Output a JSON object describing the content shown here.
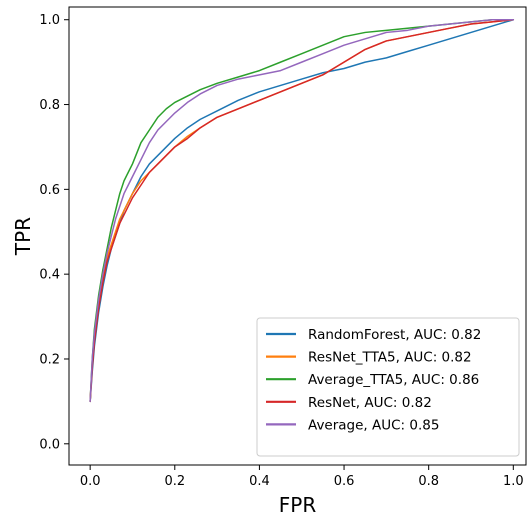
{
  "chart_data": {
    "type": "line",
    "title": "",
    "xlabel": "FPR",
    "ylabel": "TPR",
    "xlim": [
      -0.05,
      1.03
    ],
    "ylim": [
      -0.05,
      1.03
    ],
    "xticks": [
      0.0,
      0.2,
      0.4,
      0.6,
      0.8,
      1.0
    ],
    "yticks": [
      0.0,
      0.2,
      0.4,
      0.6,
      0.8,
      1.0
    ],
    "xtick_labels": [
      "0.0",
      "0.2",
      "0.4",
      "0.6",
      "0.8",
      "1.0"
    ],
    "ytick_labels": [
      "0.0",
      "0.2",
      "0.4",
      "0.6",
      "0.8",
      "1.0"
    ],
    "grid": false,
    "legend_position": "bottom-right",
    "series": [
      {
        "name": "RandomForest, AUC: 0.82",
        "color": "#1f77b4",
        "x": [
          0.0,
          0.005,
          0.01,
          0.02,
          0.03,
          0.04,
          0.05,
          0.06,
          0.07,
          0.08,
          0.09,
          0.1,
          0.12,
          0.14,
          0.16,
          0.18,
          0.2,
          0.23,
          0.26,
          0.3,
          0.35,
          0.4,
          0.45,
          0.5,
          0.55,
          0.6,
          0.65,
          0.7,
          0.75,
          0.8,
          0.85,
          0.9,
          0.95,
          1.0
        ],
        "y": [
          0.1,
          0.17,
          0.23,
          0.31,
          0.37,
          0.42,
          0.46,
          0.49,
          0.52,
          0.55,
          0.57,
          0.59,
          0.63,
          0.66,
          0.68,
          0.7,
          0.72,
          0.745,
          0.765,
          0.785,
          0.81,
          0.83,
          0.845,
          0.86,
          0.875,
          0.885,
          0.9,
          0.91,
          0.925,
          0.94,
          0.955,
          0.97,
          0.985,
          1.0
        ]
      },
      {
        "name": "ResNet_TTA5, AUC: 0.82",
        "color": "#ff7f0e",
        "x": [
          0.0,
          0.005,
          0.01,
          0.02,
          0.03,
          0.04,
          0.05,
          0.06,
          0.07,
          0.08,
          0.09,
          0.1,
          0.12,
          0.14,
          0.16,
          0.18,
          0.2,
          0.23,
          0.26,
          0.3,
          0.35,
          0.4,
          0.45,
          0.5,
          0.55,
          0.6,
          0.65,
          0.7,
          0.75,
          0.8,
          0.85,
          0.9,
          0.95,
          1.0
        ],
        "y": [
          0.1,
          0.19,
          0.25,
          0.33,
          0.39,
          0.44,
          0.47,
          0.5,
          0.53,
          0.55,
          0.57,
          0.59,
          0.62,
          0.64,
          0.66,
          0.68,
          0.7,
          0.725,
          0.745,
          0.77,
          0.79,
          0.81,
          0.83,
          0.85,
          0.87,
          0.9,
          0.93,
          0.95,
          0.96,
          0.97,
          0.98,
          0.99,
          0.995,
          1.0
        ]
      },
      {
        "name": "Average_TTA5, AUC: 0.86",
        "color": "#2ca02c",
        "x": [
          0.0,
          0.005,
          0.01,
          0.02,
          0.03,
          0.04,
          0.05,
          0.06,
          0.07,
          0.08,
          0.09,
          0.1,
          0.12,
          0.14,
          0.16,
          0.18,
          0.2,
          0.23,
          0.26,
          0.3,
          0.35,
          0.4,
          0.45,
          0.5,
          0.55,
          0.6,
          0.65,
          0.7,
          0.75,
          0.8,
          0.85,
          0.9,
          0.95,
          1.0
        ],
        "y": [
          0.1,
          0.2,
          0.27,
          0.35,
          0.41,
          0.46,
          0.51,
          0.55,
          0.59,
          0.62,
          0.64,
          0.66,
          0.71,
          0.74,
          0.77,
          0.79,
          0.805,
          0.82,
          0.835,
          0.85,
          0.865,
          0.88,
          0.9,
          0.92,
          0.94,
          0.96,
          0.97,
          0.975,
          0.98,
          0.985,
          0.99,
          0.995,
          1.0,
          1.0
        ]
      },
      {
        "name": "ResNet, AUC: 0.82",
        "color": "#d62728",
        "x": [
          0.0,
          0.005,
          0.01,
          0.02,
          0.03,
          0.04,
          0.05,
          0.06,
          0.07,
          0.08,
          0.09,
          0.1,
          0.12,
          0.14,
          0.16,
          0.18,
          0.2,
          0.23,
          0.26,
          0.3,
          0.35,
          0.4,
          0.45,
          0.5,
          0.55,
          0.6,
          0.65,
          0.7,
          0.75,
          0.8,
          0.85,
          0.9,
          0.95,
          1.0
        ],
        "y": [
          0.1,
          0.18,
          0.24,
          0.32,
          0.38,
          0.43,
          0.46,
          0.49,
          0.52,
          0.54,
          0.56,
          0.58,
          0.61,
          0.64,
          0.66,
          0.68,
          0.7,
          0.72,
          0.745,
          0.77,
          0.79,
          0.81,
          0.83,
          0.85,
          0.87,
          0.9,
          0.93,
          0.95,
          0.96,
          0.97,
          0.98,
          0.99,
          0.995,
          1.0
        ]
      },
      {
        "name": "Average, AUC: 0.85",
        "color": "#9467bd",
        "x": [
          0.0,
          0.005,
          0.01,
          0.02,
          0.03,
          0.04,
          0.05,
          0.06,
          0.07,
          0.08,
          0.09,
          0.1,
          0.12,
          0.14,
          0.16,
          0.18,
          0.2,
          0.23,
          0.26,
          0.3,
          0.35,
          0.4,
          0.45,
          0.5,
          0.55,
          0.6,
          0.65,
          0.7,
          0.75,
          0.8,
          0.85,
          0.9,
          0.95,
          1.0
        ],
        "y": [
          0.1,
          0.2,
          0.26,
          0.34,
          0.4,
          0.45,
          0.49,
          0.53,
          0.56,
          0.59,
          0.61,
          0.63,
          0.67,
          0.71,
          0.74,
          0.76,
          0.78,
          0.805,
          0.825,
          0.845,
          0.86,
          0.87,
          0.88,
          0.9,
          0.92,
          0.94,
          0.955,
          0.97,
          0.975,
          0.985,
          0.99,
          0.995,
          1.0,
          1.0
        ]
      }
    ]
  }
}
